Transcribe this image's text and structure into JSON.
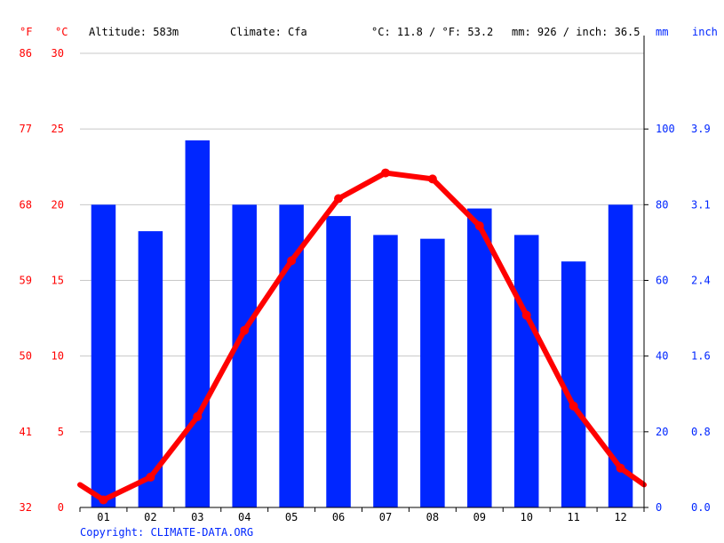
{
  "header": {
    "unit_f": "°F",
    "unit_c": "°C",
    "altitude": "Altitude: 583m",
    "climate": "Climate: Cfa",
    "temp_avg": "°C: 11.8 / °F: 53.2",
    "precip_avg": "mm: 926 / inch: 36.5",
    "unit_mm": "mm",
    "unit_inch": "inch"
  },
  "copyright": "Copyright: CLIMATE-DATA.ORG",
  "colors": {
    "temperature": "#ff0000",
    "precipitation": "#0026ff",
    "grid": "#c8c8c8"
  },
  "chart_data": {
    "type": "bar",
    "categories": [
      "01",
      "02",
      "03",
      "04",
      "05",
      "06",
      "07",
      "08",
      "09",
      "10",
      "11",
      "12"
    ],
    "x_ticks": [
      "01",
      "02",
      "03",
      "04",
      "05",
      "06",
      "07",
      "08",
      "09",
      "10",
      "11",
      "12"
    ],
    "series": [
      {
        "type": "bar",
        "axis": "right",
        "color": "#0026ff",
        "values": [
          80,
          73,
          97,
          80,
          80,
          77,
          72,
          71,
          79,
          72,
          65,
          80
        ]
      },
      {
        "type": "line",
        "axis": "left",
        "color": "#ff0000",
        "values": [
          0.5,
          2.0,
          6.0,
          11.7,
          16.3,
          20.4,
          22.1,
          21.7,
          18.6,
          12.7,
          6.7,
          2.6
        ],
        "edge_left": 1.5,
        "edge_right": 1.5
      }
    ],
    "y_left": {
      "ylim": [
        0,
        30
      ],
      "ticks_c": [
        "0",
        "5",
        "10",
        "15",
        "20",
        "25",
        "30"
      ],
      "ticks_f": [
        "32",
        "41",
        "50",
        "59",
        "68",
        "77",
        "86"
      ]
    },
    "y_right": {
      "ylim": [
        0,
        120
      ],
      "ticks_mm": [
        "0",
        "20",
        "40",
        "60",
        "80",
        "100"
      ],
      "ticks_inch": [
        "0.0",
        "0.8",
        "1.6",
        "2.4",
        "3.1",
        "3.9"
      ]
    },
    "grid": true
  }
}
